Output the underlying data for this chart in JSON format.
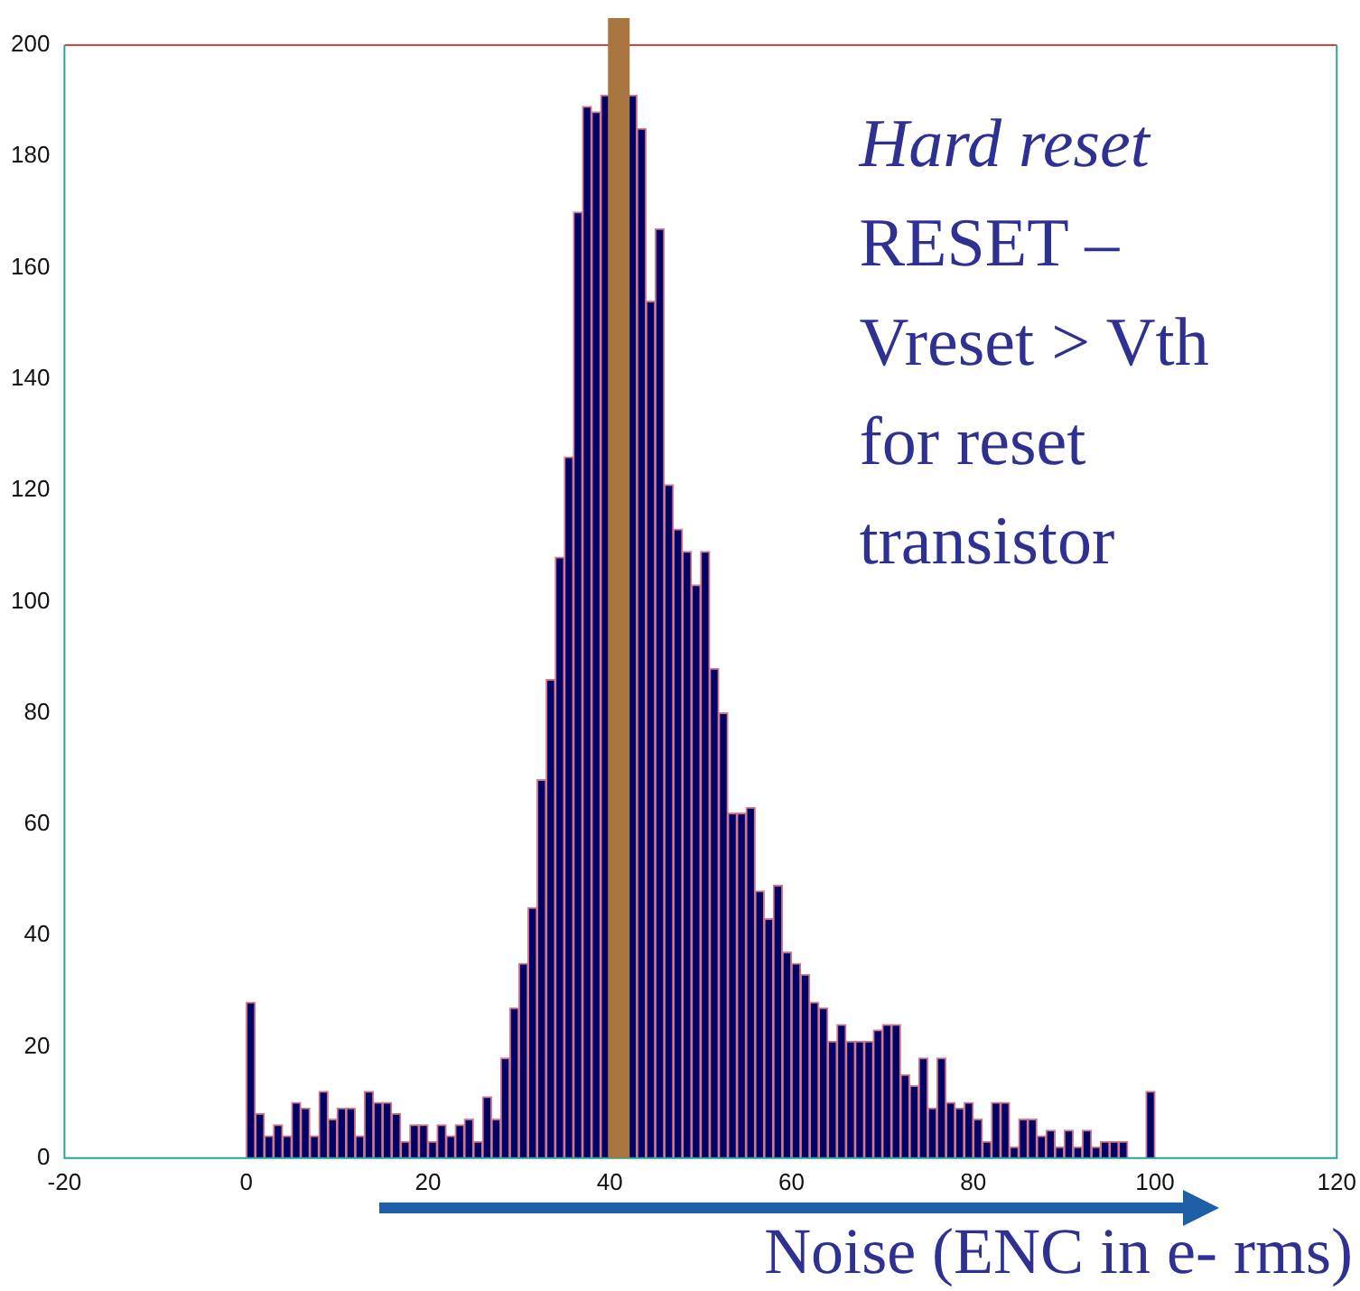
{
  "chart_data": {
    "type": "histogram",
    "xlabel": "Noise (ENC in e- rms)",
    "annotations": [
      "Hard reset",
      "RESET – Vreset > Vth for reset transistor"
    ],
    "bins": [
      0,
      1,
      2,
      3,
      4,
      5,
      6,
      7,
      8,
      9,
      10,
      11,
      12,
      13,
      14,
      15,
      16,
      17,
      18,
      19,
      20,
      21,
      22,
      23,
      24,
      25,
      26,
      27,
      28,
      29,
      30,
      31,
      32,
      33,
      34,
      35,
      36,
      37,
      38,
      39,
      40,
      41,
      42,
      43,
      44,
      45,
      46,
      47,
      48,
      49,
      50,
      51,
      52,
      53,
      54,
      55,
      56,
      57,
      58,
      59,
      60,
      61,
      62,
      63,
      64,
      65,
      66,
      67,
      68,
      69,
      70,
      71,
      72,
      73,
      74,
      75,
      76,
      77,
      78,
      79,
      80,
      81,
      82,
      83,
      84,
      85,
      86,
      87,
      88,
      89,
      90,
      91,
      92,
      93,
      94,
      95,
      96,
      97,
      98,
      99,
      100
    ],
    "values": [
      28,
      8,
      4,
      6,
      4,
      10,
      9,
      4,
      12,
      7,
      9,
      9,
      4,
      12,
      10,
      10,
      8,
      3,
      6,
      6,
      3,
      6,
      4,
      6,
      7,
      3,
      11,
      7,
      18,
      27,
      35,
      45,
      68,
      86,
      108,
      126,
      170,
      189,
      188,
      191,
      null,
      null,
      191,
      185,
      154,
      167,
      121,
      113,
      109,
      103,
      109,
      88,
      80,
      62,
      62,
      63,
      48,
      43,
      49,
      37,
      35,
      33,
      28,
      27,
      21,
      24,
      21,
      21,
      21,
      23,
      24,
      24,
      15,
      13,
      18,
      9,
      18,
      10,
      9,
      10,
      7,
      3,
      10,
      10,
      2,
      7,
      7,
      4,
      5,
      2,
      5,
      2,
      5,
      2,
      3,
      3,
      3,
      0,
      0,
      12
    ],
    "color": "#000066",
    "xlim": [
      -20,
      120
    ],
    "xticks": [
      -20,
      0,
      20,
      40,
      60,
      80,
      100,
      120
    ],
    "ylim": [
      0,
      200
    ],
    "yticks": [
      0,
      20,
      40,
      60,
      80,
      100,
      120,
      140,
      160,
      180,
      200
    ],
    "ref_lines": [
      {
        "axis": "x",
        "value": 41,
        "color": "#a8763e"
      }
    ],
    "grid": false,
    "legend": false
  }
}
